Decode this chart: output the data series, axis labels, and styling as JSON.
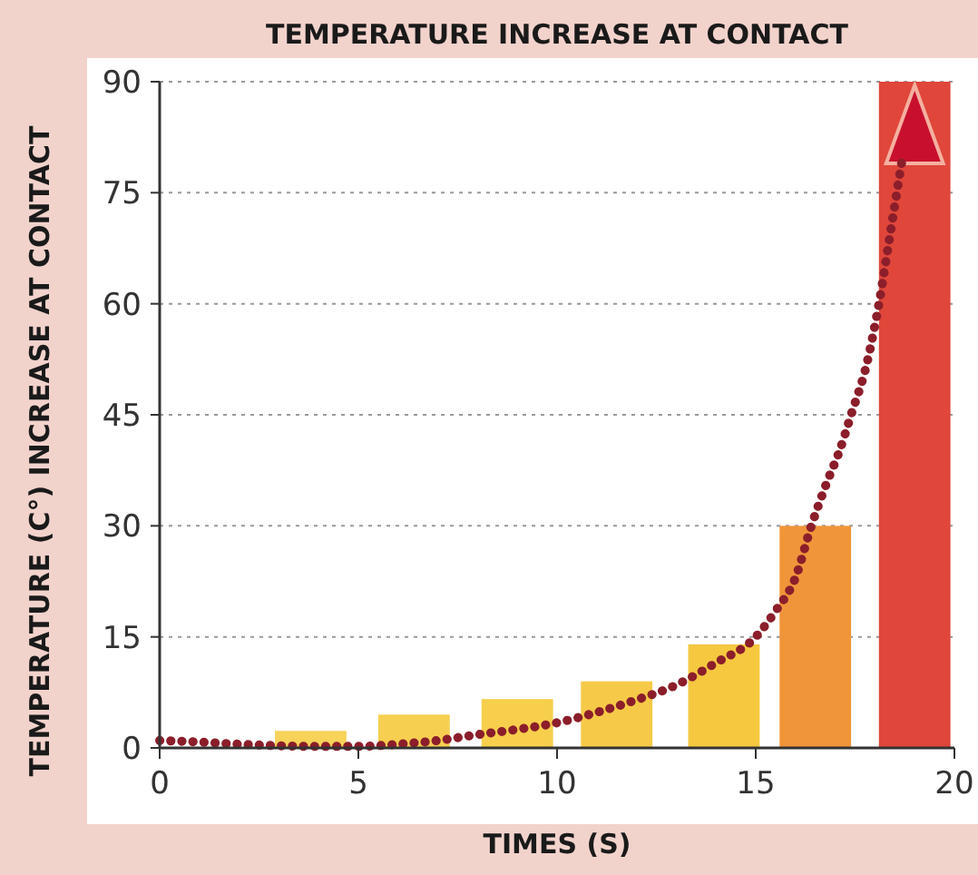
{
  "chart_data": {
    "type": "bar",
    "title": "TEMPERATURE INCREASE AT CONTACT",
    "xlabel": "TIMES (S)",
    "ylabel": "TEMPERATURE (C°) INCREASE AT CONTACT",
    "xlim": [
      0,
      20
    ],
    "ylim": [
      0,
      90
    ],
    "xticks": [
      0,
      5,
      10,
      15,
      20
    ],
    "yticks": [
      0,
      15,
      30,
      45,
      60,
      75,
      90
    ],
    "grid": "y",
    "series": [
      {
        "x": [
          3.8,
          6.4,
          9,
          11.5,
          14.2,
          16.5,
          19
        ],
        "values": [
          2.3,
          4.5,
          6.6,
          9,
          14,
          30,
          90
        ],
        "colors": [
          "#f7d35a",
          "#f7cf50",
          "#f7cf4c",
          "#f6ca48",
          "#f5c840",
          "#f0953a",
          "#e0463a"
        ]
      },
      {
        "type": "line",
        "color": "#8b1e2a",
        "line_style": "dotted",
        "x": [
          0,
          1,
          2,
          3,
          4,
          5,
          6,
          7,
          8,
          9,
          10,
          11,
          12,
          13,
          14,
          15,
          15.5,
          16,
          16.4,
          16.8,
          17.1,
          17.4,
          17.8,
          18.1,
          18.4,
          18.7
        ],
        "values": [
          1,
          0.8,
          0.5,
          0.3,
          0.2,
          0.2,
          0.5,
          1,
          1.8,
          2.5,
          3.4,
          4.8,
          6.5,
          8.5,
          11.5,
          15,
          18.5,
          23,
          30,
          36,
          40,
          45,
          52,
          60,
          70,
          80
        ]
      }
    ]
  }
}
